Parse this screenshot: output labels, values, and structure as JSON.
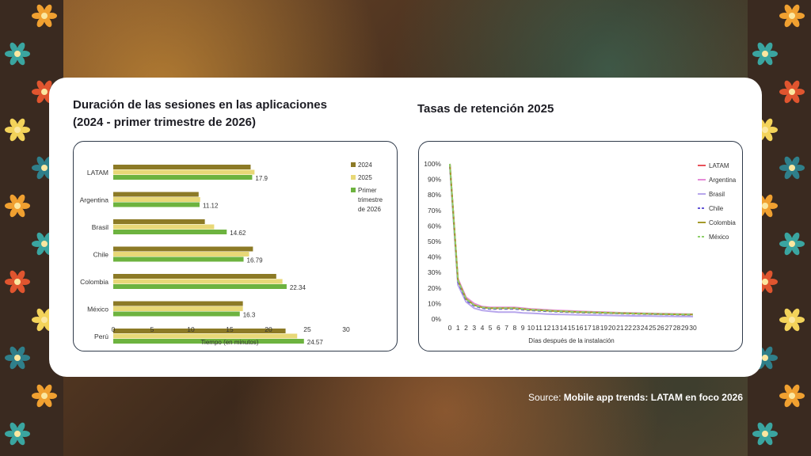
{
  "source": {
    "label": "Source:",
    "link_text": "Mobile app trends: LATAM en foco 2026"
  },
  "chart_data": [
    {
      "type": "bar",
      "orientation": "horizontal",
      "title_line1": "Duración de las sesiones en las aplicaciones",
      "title_line2": "(2024 - primer trimestre de 2026)",
      "xlabel": "Tiempo (en minutos)",
      "categories": [
        "LATAM",
        "Argentina",
        "Brasil",
        "Chile",
        "Colombia",
        "México",
        "Perú"
      ],
      "series": [
        {
          "name": "2024",
          "color": "#8c7a26",
          "values": [
            17.7,
            11.0,
            11.8,
            18.0,
            21.0,
            16.7,
            22.2
          ]
        },
        {
          "name": "2025",
          "color": "#e8d877",
          "values": [
            18.2,
            11.2,
            13.0,
            17.5,
            21.8,
            16.7,
            23.7
          ]
        },
        {
          "name": "Primer trimestre de 2026",
          "color": "#6db33f",
          "values": [
            17.9,
            11.12,
            14.62,
            16.79,
            22.34,
            16.3,
            24.57
          ]
        }
      ],
      "value_labels": [
        "17.9",
        "11.12",
        "14.62",
        "16.79",
        "22.34",
        "16.3",
        "24.57"
      ],
      "legend": [
        "2024",
        "2025",
        "Primer",
        "trimestre",
        "de 2026"
      ],
      "xlim": [
        0,
        30
      ],
      "xticks": [
        "0",
        "5",
        "10",
        "15",
        "20",
        "25",
        "30"
      ],
      "legend_position": "right"
    },
    {
      "type": "line",
      "title": "Tasas de retención 2025",
      "xlabel": "Días después de la instalación",
      "x": [
        0,
        1,
        2,
        3,
        4,
        5,
        6,
        7,
        8,
        9,
        10,
        11,
        12,
        13,
        14,
        15,
        16,
        17,
        18,
        19,
        20,
        21,
        22,
        23,
        24,
        25,
        26,
        27,
        28,
        29,
        30
      ],
      "ylim": [
        0,
        100
      ],
      "yticks": [
        "0%",
        "10%",
        "20%",
        "30%",
        "40%",
        "50%",
        "60%",
        "70%",
        "80%",
        "90%",
        "100%"
      ],
      "legend_position": "top-right",
      "series": [
        {
          "name": "LATAM",
          "color": "#e8525a",
          "dash": false,
          "values": [
            100,
            25,
            13,
            9,
            7.5,
            7,
            7,
            7,
            7,
            6.5,
            6,
            5.8,
            5.5,
            5.2,
            5,
            4.8,
            4.6,
            4.5,
            4.3,
            4.2,
            4,
            3.9,
            3.7,
            3.6,
            3.5,
            3.4,
            3.3,
            3.2,
            3.1,
            3,
            3
          ]
        },
        {
          "name": "Argentina",
          "color": "#e58bd8",
          "dash": false,
          "values": [
            100,
            26,
            14,
            10,
            8,
            7.5,
            7.5,
            7.5,
            7.5,
            7,
            6.5,
            6.2,
            5.9,
            5.6,
            5.4,
            5.2,
            5,
            4.8,
            4.6,
            4.5,
            4.3,
            4.1,
            4,
            3.9,
            3.7,
            3.6,
            3.5,
            3.4,
            3.3,
            3.2,
            3.1
          ]
        },
        {
          "name": "Brasil",
          "color": "#b7a6ec",
          "dash": false,
          "values": [
            98,
            22,
            11,
            7,
            5.5,
            5,
            4.5,
            4.5,
            4.5,
            4,
            3.8,
            3.5,
            3.2,
            3,
            2.9,
            2.8,
            2.7,
            2.6,
            2.5,
            2.4,
            2.3,
            2.2,
            2.1,
            2,
            2,
            1.9,
            1.8,
            1.8,
            1.7,
            1.7,
            1.6
          ]
        },
        {
          "name": "Chile",
          "color": "#6457d6",
          "dash": true,
          "values": [
            99,
            24,
            12,
            8.5,
            7,
            6.5,
            6.5,
            6.5,
            6.5,
            6,
            5.6,
            5.3,
            5,
            4.8,
            4.6,
            4.4,
            4.2,
            4.1,
            3.9,
            3.8,
            3.7,
            3.5,
            3.4,
            3.3,
            3.2,
            3.1,
            3,
            2.9,
            2.8,
            2.7,
            2.7
          ]
        },
        {
          "name": "Colombia",
          "color": "#a59a2a",
          "dash": false,
          "values": [
            100,
            25,
            13,
            9,
            7.5,
            7,
            7,
            7,
            7,
            6.5,
            6,
            5.7,
            5.4,
            5.1,
            4.9,
            4.7,
            4.5,
            4.4,
            4.2,
            4.1,
            3.9,
            3.8,
            3.7,
            3.5,
            3.4,
            3.3,
            3.2,
            3.1,
            3,
            2.9,
            2.9
          ]
        },
        {
          "name": "México",
          "color": "#8fd06b",
          "dash": true,
          "values": [
            100,
            25,
            13,
            9,
            7.5,
            7,
            7,
            7,
            7,
            6.5,
            6,
            5.8,
            5.5,
            5.2,
            5,
            4.8,
            4.6,
            4.5,
            4.3,
            4.2,
            4,
            3.9,
            3.7,
            3.6,
            3.5,
            3.4,
            3.3,
            3.2,
            3.1,
            3,
            3
          ]
        }
      ]
    }
  ]
}
